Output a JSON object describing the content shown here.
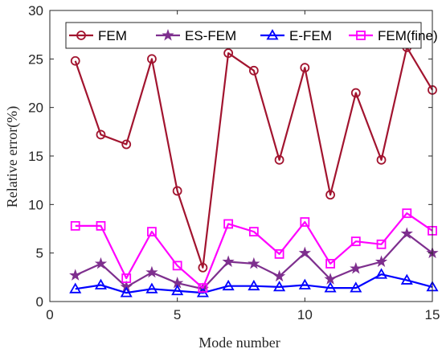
{
  "chart_data": {
    "type": "line",
    "xlabel": "Mode number",
    "ylabel": "Relative error(%)",
    "xlim": [
      0,
      15
    ],
    "ylim": [
      0,
      30
    ],
    "xticks": [
      0,
      5,
      10,
      15
    ],
    "yticks": [
      0,
      5,
      10,
      15,
      20,
      25,
      30
    ],
    "grid": false,
    "legend_position": "top, horizontal",
    "x": [
      1,
      2,
      3,
      4,
      5,
      6,
      7,
      8,
      9,
      10,
      11,
      12,
      13,
      14,
      15
    ],
    "series": [
      {
        "name": "FEM",
        "marker": "circle",
        "color": "#A2142F",
        "values": [
          24.8,
          17.2,
          16.2,
          25.0,
          11.4,
          3.5,
          25.6,
          23.8,
          14.6,
          24.1,
          11.0,
          21.5,
          14.6,
          26.2,
          21.8
        ]
      },
      {
        "name": "ES-FEM",
        "marker": "star",
        "color": "#7E2F8E",
        "values": [
          2.7,
          3.9,
          1.5,
          3.0,
          1.9,
          1.3,
          4.1,
          3.9,
          2.6,
          5.0,
          2.3,
          3.4,
          4.1,
          7.0,
          5.0
        ]
      },
      {
        "name": "E-FEM",
        "marker": "triangle",
        "color": "#0000FF",
        "values": [
          1.3,
          1.7,
          0.9,
          1.3,
          1.1,
          0.9,
          1.6,
          1.6,
          1.5,
          1.7,
          1.4,
          1.4,
          2.8,
          2.2,
          1.5
        ]
      },
      {
        "name": "FEM(fine)",
        "marker": "square",
        "color": "#FF00FF",
        "values": [
          7.8,
          7.8,
          2.4,
          7.2,
          3.7,
          1.4,
          8.0,
          7.2,
          4.9,
          8.2,
          3.9,
          6.2,
          5.9,
          9.1,
          7.3
        ]
      }
    ]
  }
}
